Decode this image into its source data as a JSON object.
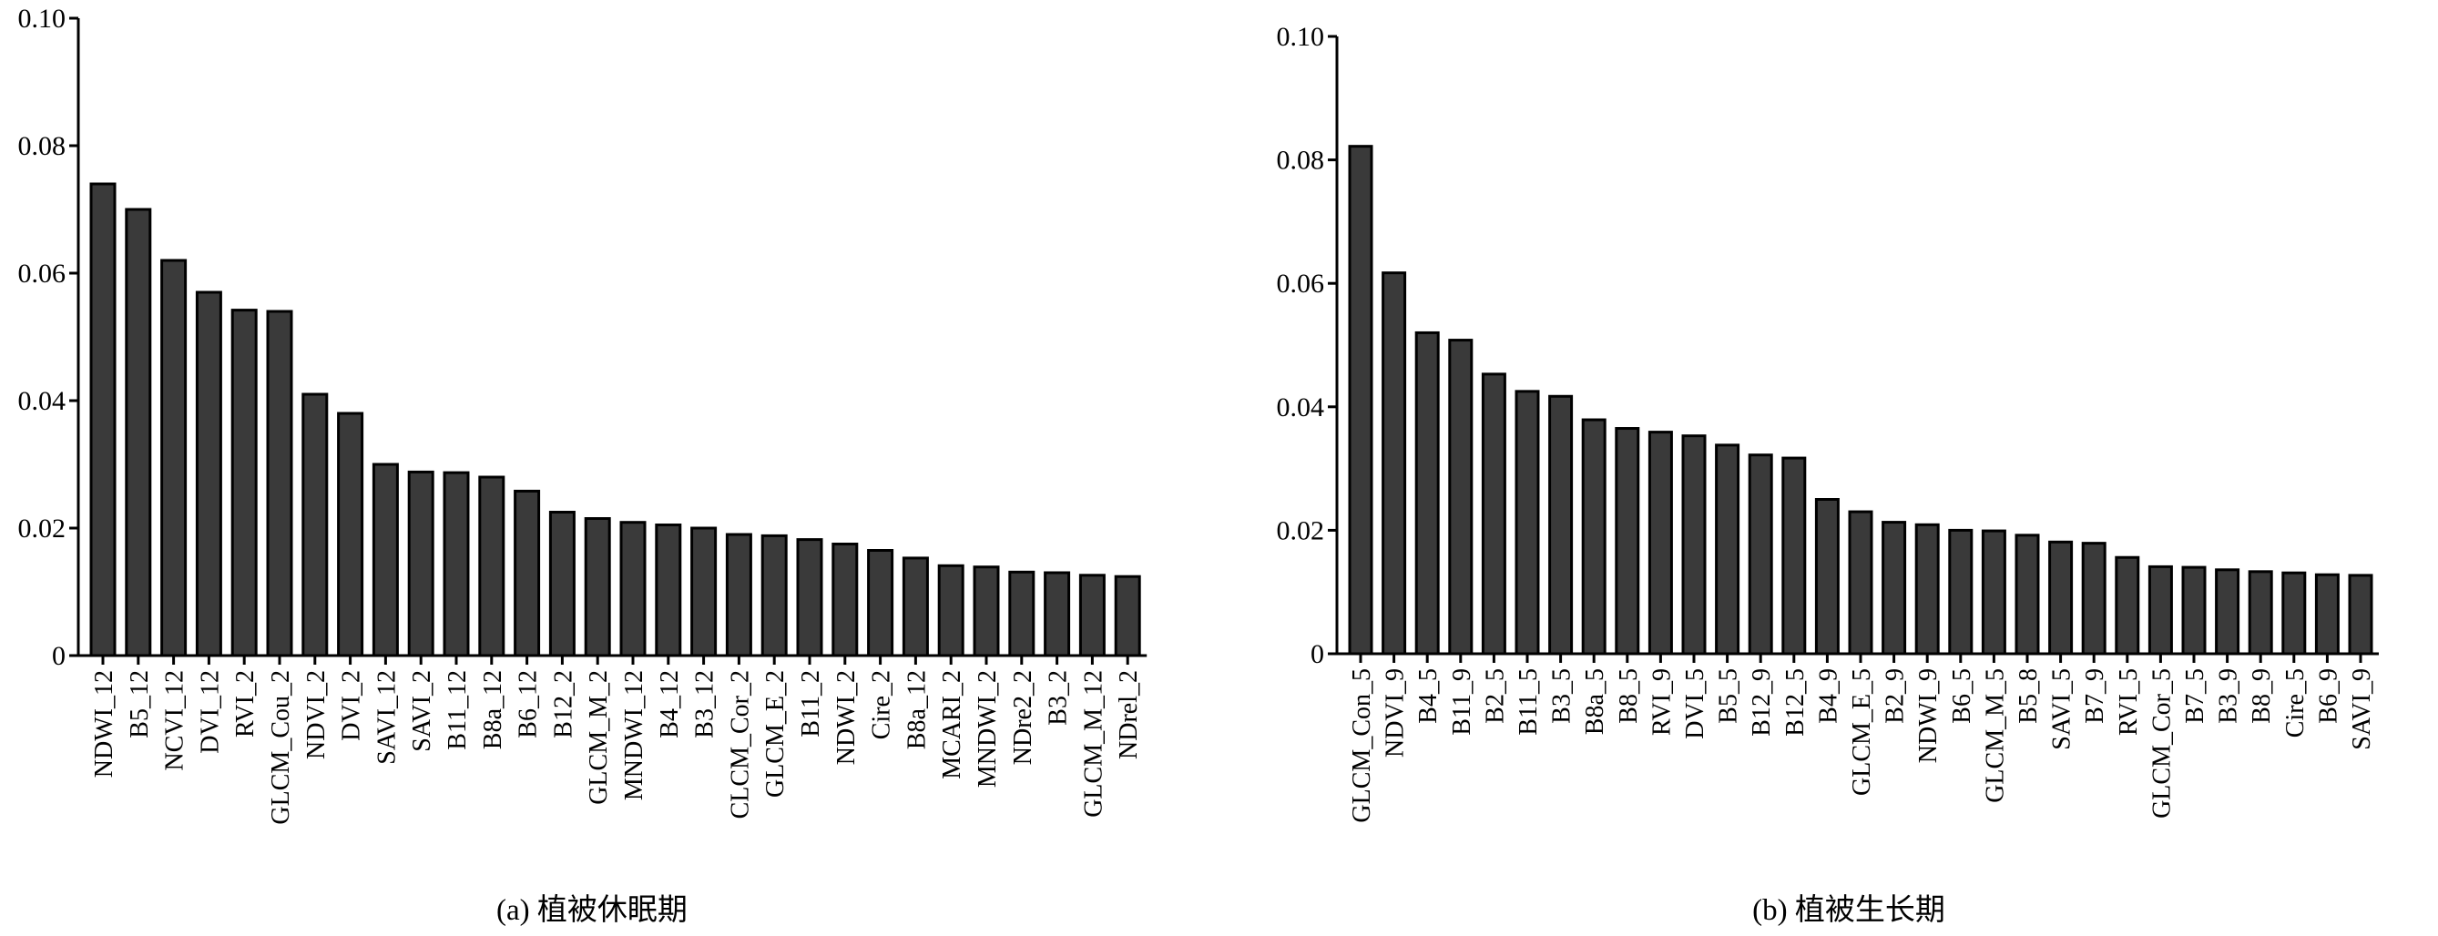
{
  "colors": {
    "bar_fill": "#3a3a3a",
    "bar_stroke": "#000000",
    "axis": "#000000"
  },
  "chart_data": [
    {
      "type": "bar",
      "caption": "(a) 植被休眠期",
      "ylim": [
        0,
        0.1
      ],
      "yticks": [
        "0",
        "0.02",
        "0.04",
        "0.06",
        "0.08",
        "0.10"
      ],
      "categories": [
        "NDWI_12",
        "B5_12",
        "NCVI_12",
        "DVI_12",
        "RVI_2",
        "GLCM_Cou_2",
        "NDVI_2",
        "DVI_2",
        "SAVI_12",
        "SAVI_2",
        "B11_12",
        "B8a_12",
        "B6_12",
        "B12_2",
        "GLCM_M_2",
        "MNDWI_12",
        "B4_12",
        "B3_12",
        "CLCM_Cor_2",
        "GLCM_E_2",
        "B11_2",
        "NDWI_2",
        "Cire_2",
        "B8a_12",
        "MCARI_2",
        "MNDWI_2",
        "NDre2_2",
        "B3_2",
        "GLCM_M_12",
        "NDrel_2"
      ],
      "values": [
        0.074,
        0.07,
        0.062,
        0.057,
        0.0542,
        0.054,
        0.041,
        0.038,
        0.03,
        0.0288,
        0.0287,
        0.028,
        0.0258,
        0.0225,
        0.0215,
        0.0209,
        0.0205,
        0.02,
        0.019,
        0.0188,
        0.0182,
        0.0175,
        0.0165,
        0.0153,
        0.0141,
        0.0139,
        0.0131,
        0.013,
        0.0126,
        0.0124
      ]
    },
    {
      "type": "bar",
      "caption": "(b) 植被生长期",
      "ylim": [
        0,
        0.1
      ],
      "yticks": [
        "0",
        "0.02",
        "0.04",
        "0.06",
        "0.08",
        "0.10"
      ],
      "categories": [
        "GLCM_Con_5",
        "NDVI_9",
        "B4_5",
        "B11_9",
        "B2_5",
        "B11_5",
        "B3_5",
        "B8a_5",
        "B8_5",
        "RVI_9",
        "DVI_5",
        "B5_5",
        "B12_9",
        "B12_5",
        "B4_9",
        "GLCM_E_5",
        "B2_9",
        "NDWI_9",
        "B6_5",
        "GLCM_M_5",
        "B5_8",
        "SAVI_5",
        "B7_9",
        "RVI_5",
        "GLCM_Cor_5",
        "B7_5",
        "B3_9",
        "B8_9",
        "Cire_5",
        "B6_9",
        "SAVI_9"
      ],
      "values": [
        0.0822,
        0.0617,
        0.052,
        0.0508,
        0.0453,
        0.0425,
        0.0417,
        0.0379,
        0.0365,
        0.0359,
        0.0353,
        0.0338,
        0.0322,
        0.0317,
        0.025,
        0.023,
        0.0213,
        0.0209,
        0.02,
        0.0199,
        0.0192,
        0.0181,
        0.0179,
        0.0156,
        0.0141,
        0.014,
        0.0136,
        0.0133,
        0.0131,
        0.0128,
        0.0127
      ]
    }
  ]
}
